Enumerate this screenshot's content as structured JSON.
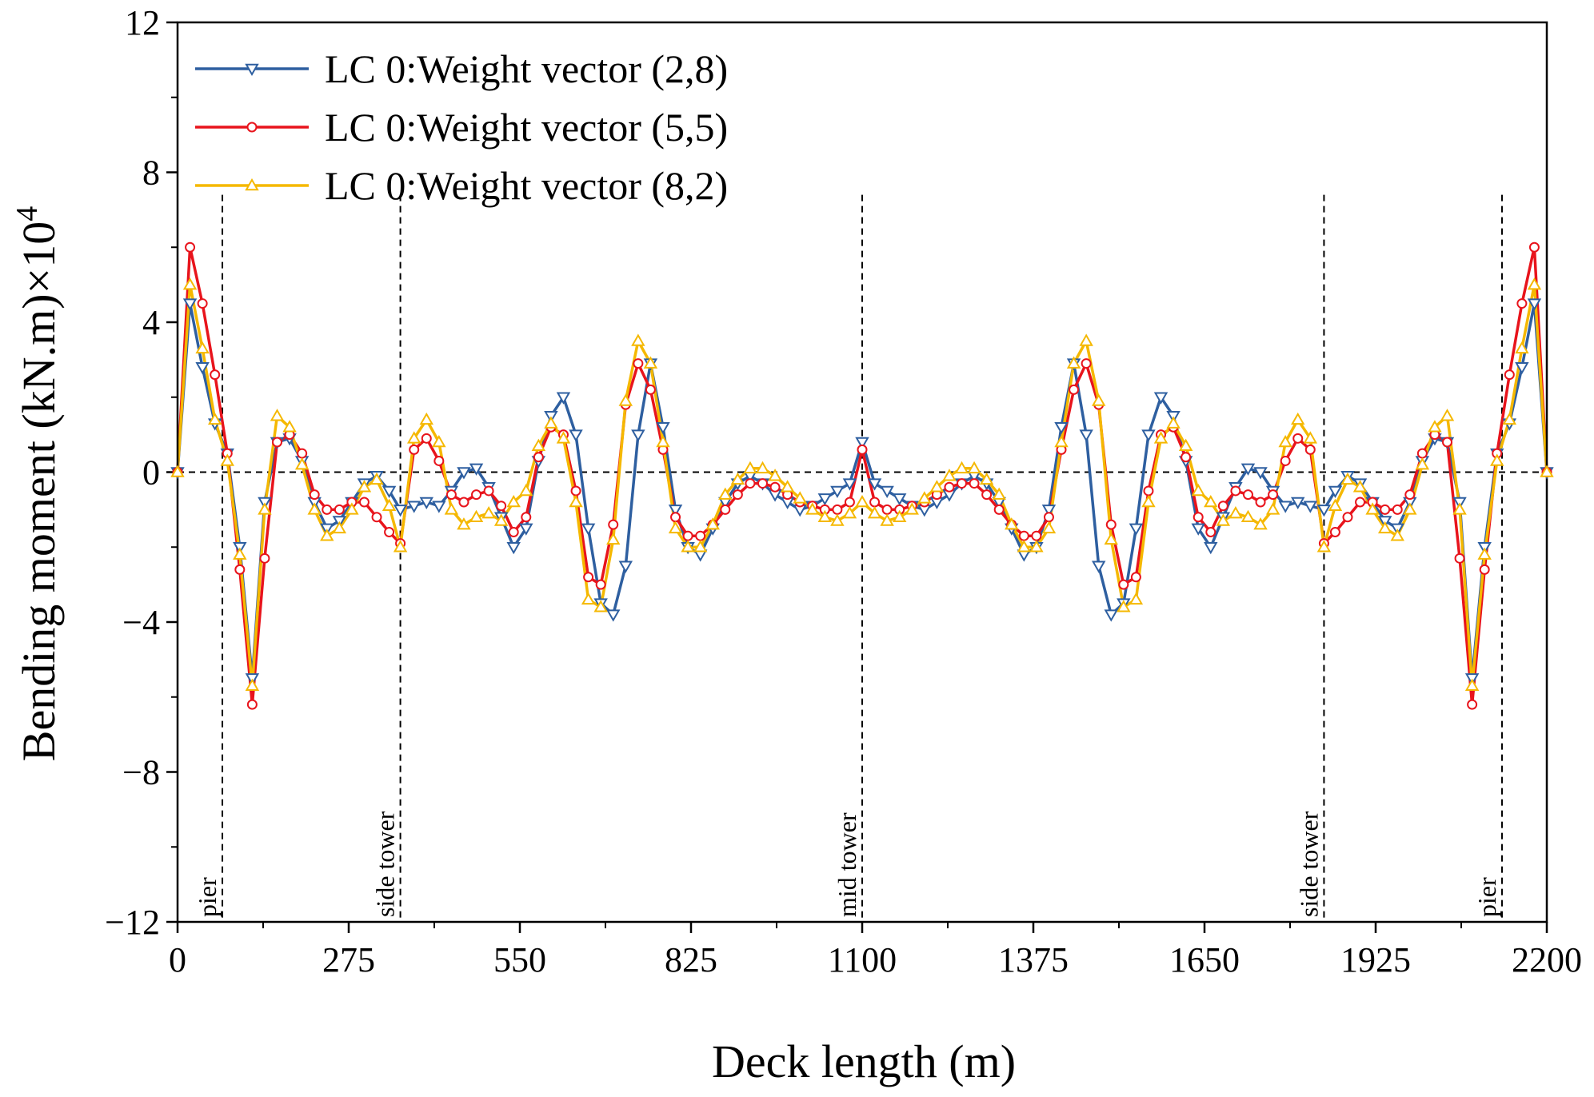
{
  "chart_data": {
    "type": "line",
    "title": "",
    "xlabel": "Deck length (m)",
    "ylabel": "Bending moment (kN.m)×10",
    "ylabel_exponent": "4",
    "xlim": [
      0,
      2200
    ],
    "ylim": [
      -12,
      12
    ],
    "xticks": [
      0,
      275,
      550,
      825,
      1100,
      1375,
      1650,
      1925,
      2200
    ],
    "yticks": [
      -12,
      -8,
      -4,
      0,
      4,
      8,
      12
    ],
    "grid": false,
    "legend_position": "top-left",
    "reference_lines": [
      {
        "x": 72,
        "label": "pier"
      },
      {
        "x": 358,
        "label": "side tower"
      },
      {
        "x": 1100,
        "label": "mid tower"
      },
      {
        "x": 1842,
        "label": "side tower"
      },
      {
        "x": 2128,
        "label": "pier"
      }
    ],
    "series": [
      {
        "name": "LC 0:Weight vector (2,8)",
        "color": "#2e5fa0",
        "marker": "triangle-down",
        "x": [
          0,
          20,
          40,
          60,
          80,
          100,
          120,
          140,
          160,
          180,
          200,
          220,
          240,
          260,
          280,
          300,
          320,
          340,
          358,
          380,
          400,
          420,
          440,
          460,
          480,
          500,
          520,
          540,
          560,
          580,
          600,
          620,
          640,
          660,
          680,
          700,
          720,
          740,
          760,
          780,
          800,
          820,
          840,
          860,
          880,
          900,
          920,
          940,
          960,
          980,
          1000,
          1020,
          1040,
          1060,
          1080,
          1100
        ],
        "values": [
          0,
          4.5,
          2.8,
          1.3,
          0.5,
          -2.0,
          -5.5,
          -0.8,
          0.8,
          0.9,
          0.3,
          -0.8,
          -1.5,
          -1.3,
          -0.8,
          -0.3,
          -0.1,
          -0.5,
          -1.0,
          -0.9,
          -0.8,
          -0.9,
          -0.5,
          0.0,
          0.1,
          -0.4,
          -1.2,
          -2.0,
          -1.5,
          0.3,
          1.5,
          2.0,
          1.0,
          -1.5,
          -3.5,
          -3.8,
          -2.5,
          1.0,
          2.9,
          1.2,
          -1.0,
          -2.0,
          -2.2,
          -1.5,
          -0.8,
          -0.3,
          -0.1,
          -0.3,
          -0.6,
          -0.8,
          -1.0,
          -0.9,
          -0.7,
          -0.5,
          -0.3,
          0.8
        ]
      },
      {
        "name": "LC 0:Weight vector (5,5)",
        "color": "#e8141c",
        "marker": "circle",
        "x": [
          0,
          20,
          40,
          60,
          80,
          100,
          120,
          140,
          160,
          180,
          200,
          220,
          240,
          260,
          280,
          300,
          320,
          340,
          358,
          380,
          400,
          420,
          440,
          460,
          480,
          500,
          520,
          540,
          560,
          580,
          600,
          620,
          640,
          660,
          680,
          700,
          720,
          740,
          760,
          780,
          800,
          820,
          840,
          860,
          880,
          900,
          920,
          940,
          960,
          980,
          1000,
          1020,
          1040,
          1060,
          1080,
          1100
        ],
        "values": [
          0,
          6.0,
          4.5,
          2.6,
          0.5,
          -2.6,
          -6.2,
          -2.3,
          0.8,
          1.0,
          0.5,
          -0.6,
          -1.0,
          -1.0,
          -0.8,
          -0.8,
          -1.2,
          -1.6,
          -1.9,
          0.6,
          0.9,
          0.3,
          -0.6,
          -0.8,
          -0.6,
          -0.5,
          -0.9,
          -1.6,
          -1.2,
          0.4,
          1.2,
          1.0,
          -0.5,
          -2.8,
          -3.0,
          -1.4,
          1.8,
          2.9,
          2.2,
          0.6,
          -1.2,
          -1.7,
          -1.7,
          -1.4,
          -1.0,
          -0.6,
          -0.3,
          -0.3,
          -0.4,
          -0.6,
          -0.8,
          -0.9,
          -1.0,
          -1.0,
          -0.8,
          0.6
        ]
      },
      {
        "name": "LC 0:Weight vector (8,2)",
        "color": "#f5b800",
        "marker": "triangle-up",
        "x": [
          0,
          20,
          40,
          60,
          80,
          100,
          120,
          140,
          160,
          180,
          200,
          220,
          240,
          260,
          280,
          300,
          320,
          340,
          358,
          380,
          400,
          420,
          440,
          460,
          480,
          500,
          520,
          540,
          560,
          580,
          600,
          620,
          640,
          660,
          680,
          700,
          720,
          740,
          760,
          780,
          800,
          820,
          840,
          860,
          880,
          900,
          920,
          940,
          960,
          980,
          1000,
          1020,
          1040,
          1060,
          1080,
          1100
        ],
        "values": [
          0,
          5.0,
          3.3,
          1.4,
          0.3,
          -2.2,
          -5.7,
          -1.0,
          1.5,
          1.2,
          0.2,
          -1.0,
          -1.7,
          -1.5,
          -1.0,
          -0.4,
          -0.2,
          -0.9,
          -2.0,
          0.9,
          1.4,
          0.8,
          -1.0,
          -1.4,
          -1.2,
          -1.1,
          -1.3,
          -0.8,
          -0.5,
          0.7,
          1.3,
          0.9,
          -0.8,
          -3.4,
          -3.6,
          -1.8,
          1.9,
          3.5,
          2.9,
          0.8,
          -1.5,
          -2.0,
          -2.0,
          -1.4,
          -0.6,
          -0.2,
          0.1,
          0.1,
          -0.1,
          -0.4,
          -0.7,
          -1.0,
          -1.2,
          -1.3,
          -1.1,
          -0.8
        ]
      }
    ]
  }
}
